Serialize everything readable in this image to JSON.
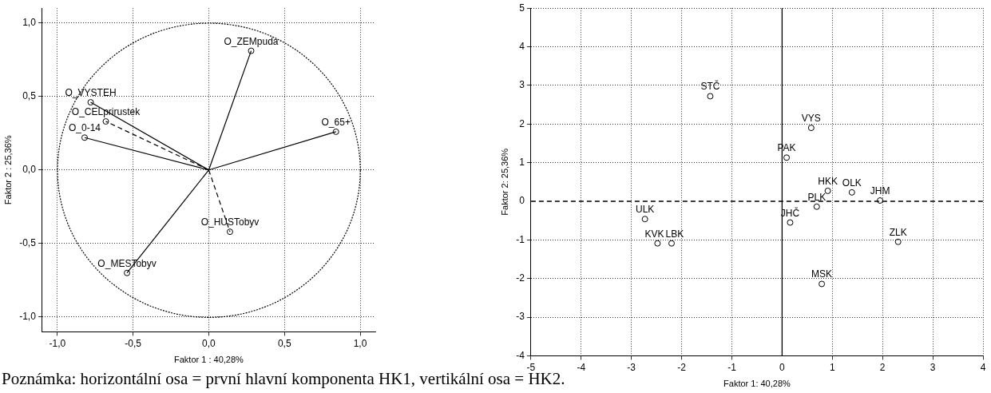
{
  "chart_data": [
    {
      "type": "scatter",
      "xlabel": "Faktor 1 : 40,28%",
      "ylabel": "Faktor 2 : 25,36%",
      "xlim": [
        -1.1,
        1.1
      ],
      "ylim": [
        -1.1,
        1.1
      ],
      "xticks": [
        {
          "value": -1,
          "label": "-1,0"
        },
        {
          "value": -0.5,
          "label": "-0,5"
        },
        {
          "value": 0,
          "label": "0,0"
        },
        {
          "value": 0.5,
          "label": "0,5"
        },
        {
          "value": 1,
          "label": "1,0"
        }
      ],
      "yticks": [
        {
          "value": -1,
          "label": "-1,0"
        },
        {
          "value": -0.5,
          "label": "-0,5"
        },
        {
          "value": 0,
          "label": "0,0"
        },
        {
          "value": 0.5,
          "label": "0,5"
        },
        {
          "value": 1,
          "label": "1,0"
        }
      ],
      "grid": true,
      "legend": false,
      "series": [
        {
          "type": "line",
          "color": "#000000",
          "x": [
            0,
            0.28
          ],
          "values": [
            0,
            0.81
          ],
          "line_style": "solid"
        },
        {
          "type": "line",
          "color": "#000000",
          "x": [
            0,
            -0.78
          ],
          "values": [
            0,
            0.46
          ],
          "line_style": "solid"
        },
        {
          "type": "line",
          "color": "#000000",
          "x": [
            0,
            -0.68
          ],
          "values": [
            0,
            0.33
          ],
          "line_style": "dashed"
        },
        {
          "type": "line",
          "color": "#000000",
          "x": [
            0,
            -0.82
          ],
          "values": [
            0,
            0.22
          ],
          "line_style": "solid"
        },
        {
          "type": "line",
          "color": "#000000",
          "x": [
            0,
            0.84
          ],
          "values": [
            0,
            0.26
          ],
          "line_style": "solid"
        },
        {
          "type": "line",
          "color": "#000000",
          "x": [
            0,
            0.14
          ],
          "values": [
            0,
            -0.42
          ],
          "line_style": "dashed"
        },
        {
          "type": "line",
          "color": "#000000",
          "x": [
            0,
            -0.54
          ],
          "values": [
            0,
            -0.7
          ],
          "line_style": "solid"
        },
        {
          "type": "scatter",
          "color": "#000000",
          "x": [
            0.28,
            -0.78,
            -0.68,
            -0.82,
            0.84,
            0.14,
            -0.54
          ],
          "values": [
            0.81,
            0.46,
            0.33,
            0.22,
            0.26,
            -0.42,
            -0.7
          ],
          "marker": "circle"
        }
      ],
      "annotations": [
        {
          "text": "O_ZEMpuda",
          "x": 0.28,
          "y": 0.81
        },
        {
          "text": "O_VYSTEH",
          "x": -0.78,
          "y": 0.46
        },
        {
          "text": "O_CELprirustek",
          "x": -0.68,
          "y": 0.33
        },
        {
          "text": "O_0-14",
          "x": -0.82,
          "y": 0.22
        },
        {
          "text": "O_65+",
          "x": 0.84,
          "y": 0.26
        },
        {
          "text": "O_HUSTobyv",
          "x": 0.14,
          "y": -0.42
        },
        {
          "text": "O_MESTobyv",
          "x": -0.54,
          "y": -0.7
        },
        "Poznámka: horizontální osa = první hlavní komponenta HK1, vertikální osa = HK2."
      ]
    },
    {
      "type": "scatter",
      "xlabel": "Faktor 1: 40,28%",
      "ylabel": "Faktor 2: 25,36%",
      "xlim": [
        -5,
        4
      ],
      "ylim": [
        -4,
        5
      ],
      "xticks": [
        -5,
        -4,
        -3,
        -2,
        -1,
        0,
        1,
        2,
        3,
        4
      ],
      "yticks": [
        -4,
        -3,
        -2,
        -1,
        0,
        1,
        2,
        3,
        4,
        5
      ],
      "grid": true,
      "legend": false,
      "series": [
        {
          "color": "#000000",
          "marker": "circle",
          "x": [
            -1.43,
            0.58,
            0.09,
            0.91,
            1.39,
            1.95,
            0.69,
            0.16,
            -2.73,
            -2.48,
            -2.2,
            2.31,
            0.79
          ],
          "values": [
            2.72,
            1.9,
            1.13,
            0.27,
            0.23,
            0.02,
            -0.14,
            -0.55,
            -0.46,
            -1.09,
            -1.09,
            -1.05,
            -2.14
          ]
        }
      ],
      "ref_lines": [
        {
          "axis": "x",
          "value": 0,
          "color": "#000000",
          "line_style": "solid"
        },
        {
          "axis": "y",
          "value": 0,
          "color": "#000000",
          "line_style": "dashed"
        }
      ],
      "annotations": [
        {
          "text": "STČ",
          "x": -1.43,
          "y": 2.72
        },
        {
          "text": "VYS",
          "x": 0.58,
          "y": 1.9
        },
        {
          "text": "PAK",
          "x": 0.09,
          "y": 1.13
        },
        {
          "text": "HKK",
          "x": 0.91,
          "y": 0.27
        },
        {
          "text": "OLK",
          "x": 1.39,
          "y": 0.23
        },
        {
          "text": "JHM",
          "x": 1.95,
          "y": 0.02
        },
        {
          "text": "PLK",
          "x": 0.69,
          "y": -0.14
        },
        {
          "text": "JHČ",
          "x": 0.16,
          "y": -0.55
        },
        {
          "text": "ULK",
          "x": -2.73,
          "y": -0.46
        },
        {
          "text": "KVK",
          "x": -2.48,
          "y": -1.09
        },
        {
          "text": "LBK",
          "x": -2.2,
          "y": -1.09
        },
        {
          "text": "ZLK",
          "x": 2.31,
          "y": -1.05
        },
        {
          "text": "MSK",
          "x": 0.79,
          "y": -2.14
        }
      ]
    }
  ]
}
